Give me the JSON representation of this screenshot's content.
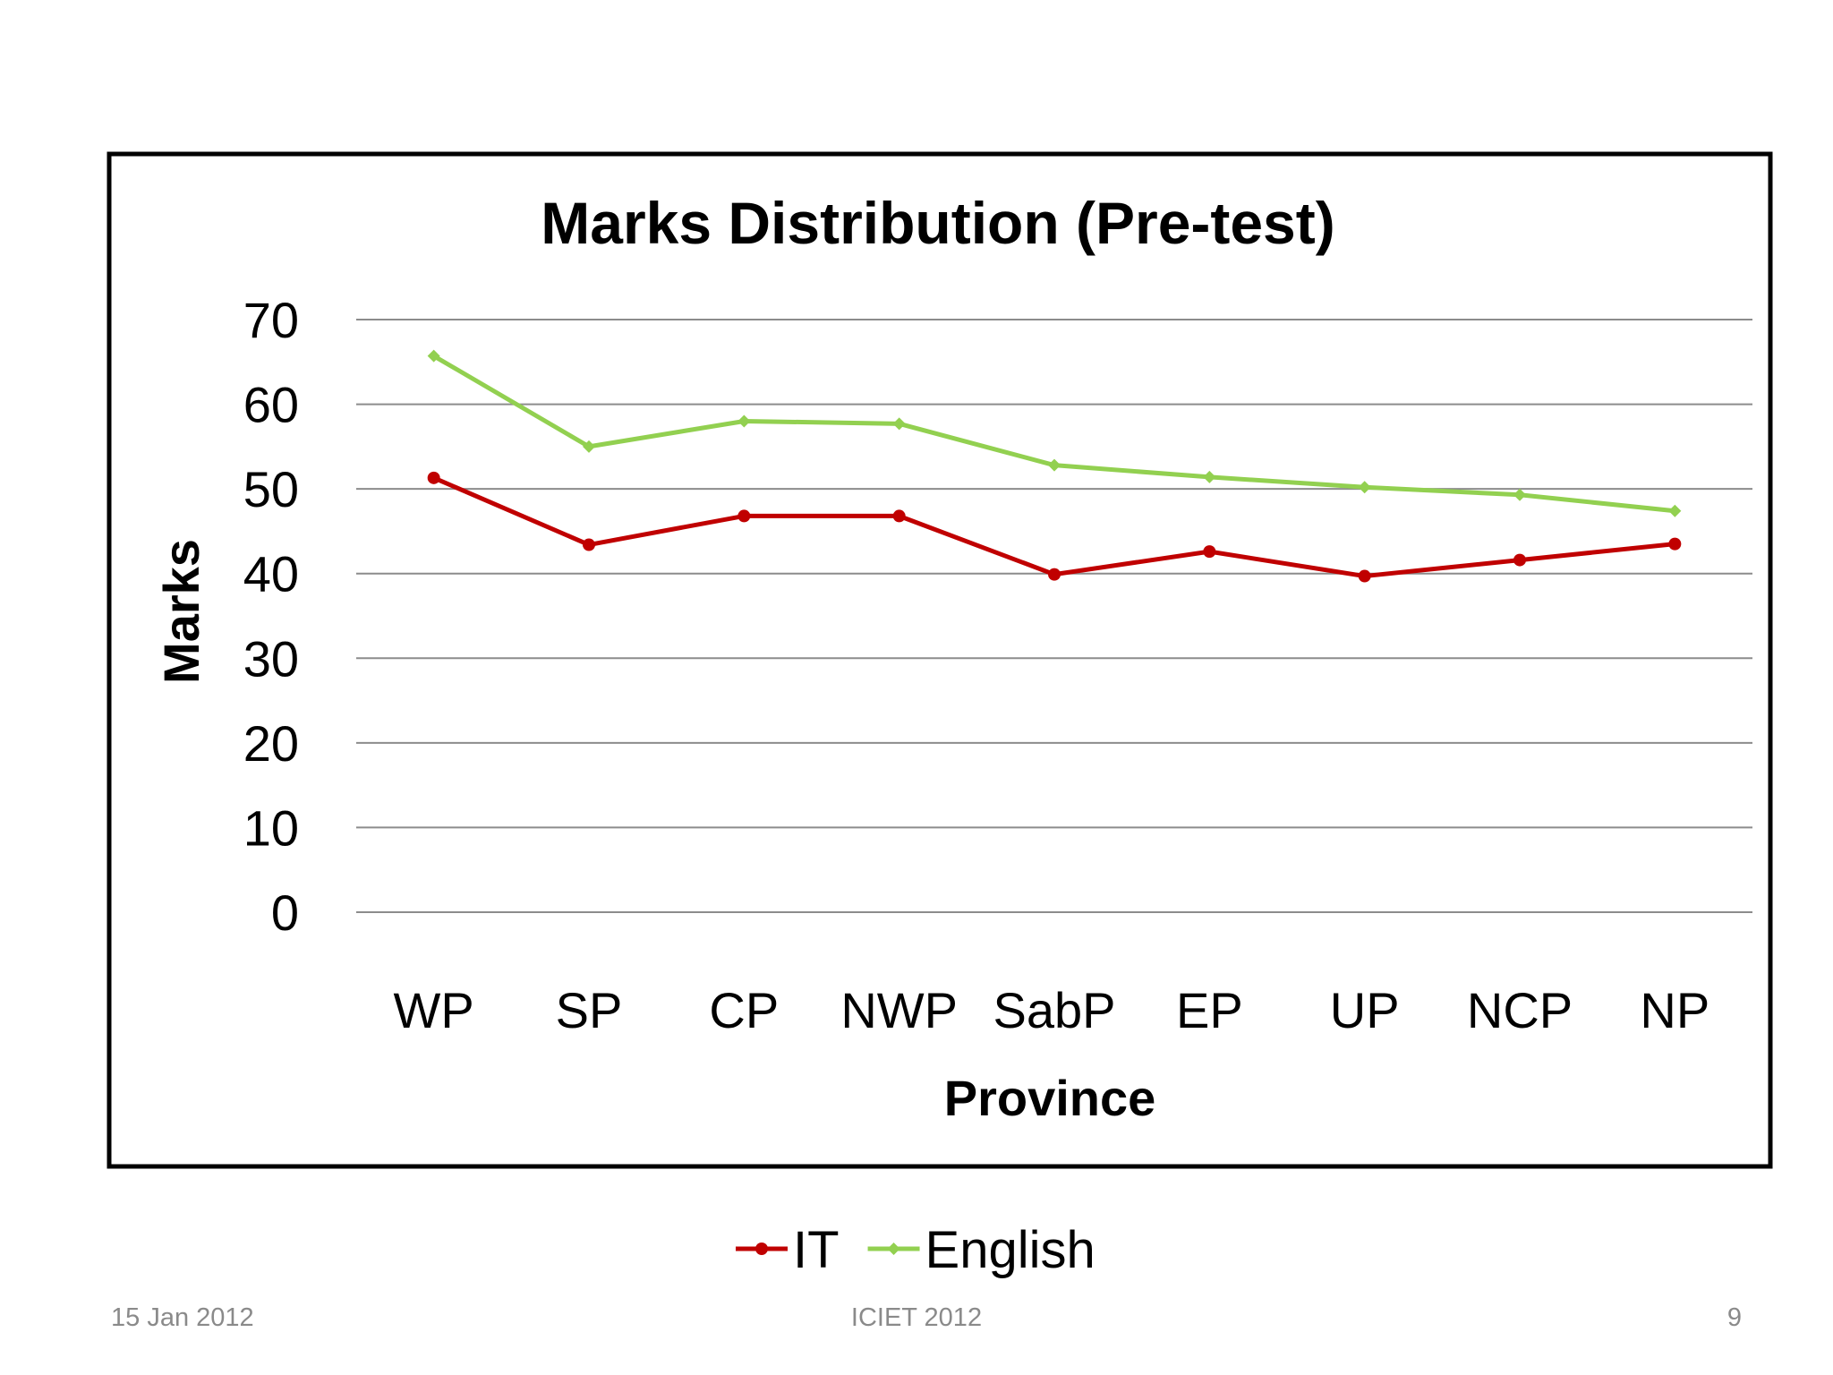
{
  "chart_data": {
    "type": "line",
    "title": "Marks Distribution (Pre-test)",
    "xlabel": "Province",
    "ylabel": "Marks",
    "categories": [
      "WP",
      "SP",
      "CP",
      "NWP",
      "SabP",
      "EP",
      "UP",
      "NCP",
      "NP"
    ],
    "ylim": [
      0,
      70
    ],
    "yticks": [
      0,
      10,
      20,
      30,
      40,
      50,
      60,
      70
    ],
    "grid": true,
    "legend_position": "bottom-center",
    "series": [
      {
        "name": "IT",
        "color": "#c00000",
        "marker": "circle",
        "values": [
          51.3,
          43.4,
          46.8,
          46.8,
          39.9,
          42.6,
          39.7,
          41.6,
          43.5
        ]
      },
      {
        "name": "English",
        "color": "#92d050",
        "marker": "diamond",
        "values": [
          65.7,
          55.0,
          58.0,
          57.7,
          52.8,
          51.4,
          50.2,
          49.3,
          47.4
        ]
      }
    ]
  },
  "footer": {
    "date": "15 Jan 2012",
    "event": "ICIET 2012",
    "page": "9"
  }
}
